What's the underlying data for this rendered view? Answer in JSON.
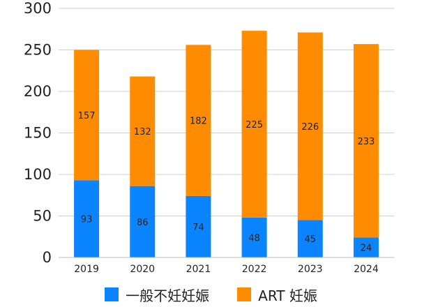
{
  "chart_data": {
    "type": "bar",
    "stacked": true,
    "categories": [
      "2019",
      "2020",
      "2021",
      "2022",
      "2023",
      "2024"
    ],
    "series": [
      {
        "name": "一般不妊妊娠",
        "color": "#0a84ff",
        "values": [
          93,
          86,
          74,
          48,
          45,
          24
        ]
      },
      {
        "name": "ART 妊娠",
        "color": "#ff8c00",
        "values": [
          157,
          132,
          182,
          225,
          226,
          233
        ]
      }
    ],
    "yticks": [
      "0",
      "50",
      "100",
      "150",
      "200",
      "250",
      "300"
    ],
    "ylim": [
      0,
      300
    ],
    "grid": true,
    "legend_position": "bottom",
    "title": "",
    "xlabel": "",
    "ylabel": ""
  }
}
